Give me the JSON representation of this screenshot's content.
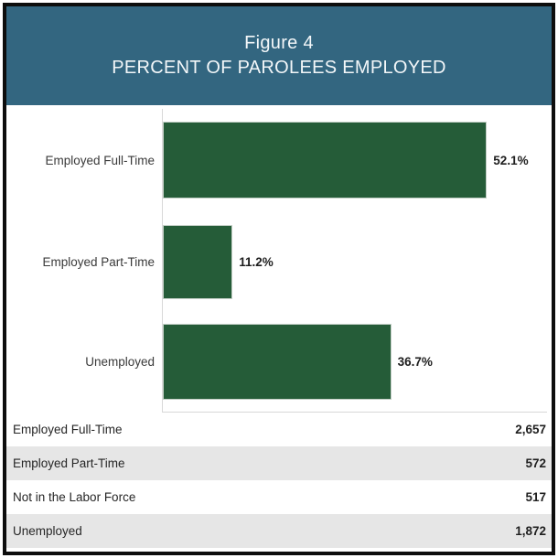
{
  "header": {
    "line1": "Figure 4",
    "line2": "PERCENT OF PAROLEES EMPLOYED",
    "bg_color": "#336680",
    "text_color": "#f3f7f9"
  },
  "chart_data": {
    "type": "bar",
    "orientation": "horizontal",
    "categories": [
      "Employed Full-Time",
      "Employed Part-Time",
      "Unemployed"
    ],
    "values": [
      52.1,
      11.2,
      36.7
    ],
    "value_labels": [
      "52.1%",
      "11.2%",
      "36.7%"
    ],
    "value_unit": "%",
    "bar_color": "#255C38",
    "xlim": [
      0,
      60
    ],
    "grid": false,
    "legend": "none",
    "title": "Figure 4 — PERCENT OF PAROLEES EMPLOYED"
  },
  "table": {
    "rows": [
      {
        "label": "Employed Full-Time",
        "value": "2,657"
      },
      {
        "label": "Employed Part-Time",
        "value": "572"
      },
      {
        "label": "Not in the Labor Force",
        "value": "517"
      },
      {
        "label": "Unemployed",
        "value": "1,872"
      }
    ],
    "alt_row_color": "#e6e6e6"
  }
}
